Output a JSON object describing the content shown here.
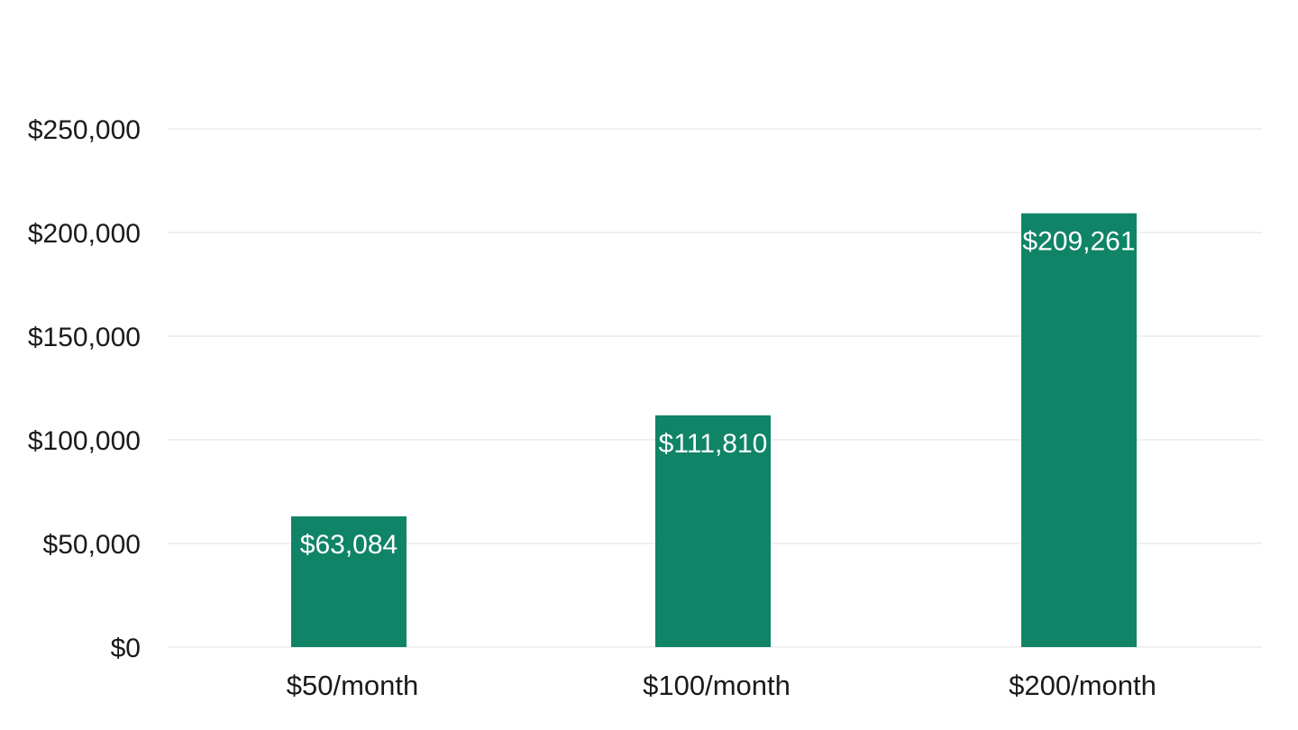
{
  "chart_data": {
    "type": "bar",
    "title": "",
    "xlabel": "",
    "ylabel": "",
    "categories": [
      "$50/month",
      "$100/month",
      "$200/month"
    ],
    "values": [
      63084,
      111810,
      209261
    ],
    "data_labels": [
      "$63,084",
      "$111,810",
      "$209,261"
    ],
    "ylim": [
      0,
      250000
    ],
    "y_ticks": [
      0,
      50000,
      100000,
      150000,
      200000,
      250000
    ],
    "y_tick_labels": [
      "$0",
      "$50,000",
      "$100,000",
      "$150,000",
      "$200,000",
      "$250,000"
    ],
    "grid": true,
    "legend": "none",
    "bar_color": "#108467",
    "grid_color": "#ececec",
    "label_color": "#ffffff"
  }
}
